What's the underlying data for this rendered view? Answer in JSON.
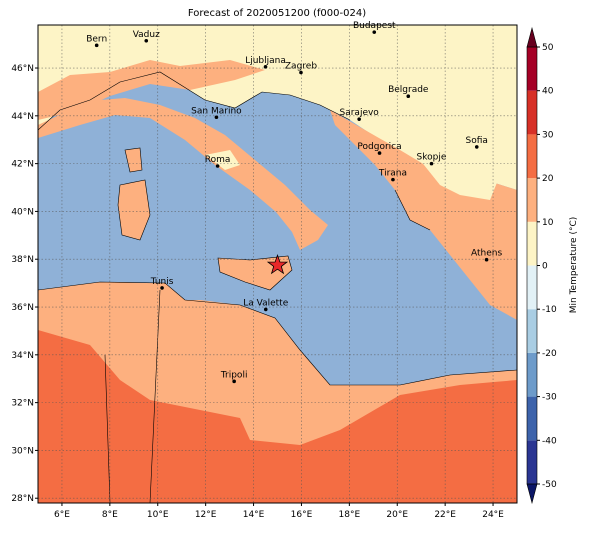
{
  "map": {
    "title": "Forecast of 2020051200 (f000-024)",
    "xlim": [
      5,
      25
    ],
    "ylim": [
      27.8,
      47.8
    ],
    "xticks": [
      {
        "value": 6,
        "label": "6°E"
      },
      {
        "value": 8,
        "label": "8°E"
      },
      {
        "value": 10,
        "label": "10°E"
      },
      {
        "value": 12,
        "label": "12°E"
      },
      {
        "value": 14,
        "label": "14°E"
      },
      {
        "value": 16,
        "label": "16°E"
      },
      {
        "value": 18,
        "label": "18°E"
      },
      {
        "value": 20,
        "label": "20°E"
      },
      {
        "value": 22,
        "label": "22°E"
      },
      {
        "value": 24,
        "label": "24°E"
      }
    ],
    "yticks": [
      {
        "value": 28,
        "label": "28°N"
      },
      {
        "value": 30,
        "label": "30°N"
      },
      {
        "value": 32,
        "label": "32°N"
      },
      {
        "value": 34,
        "label": "34°N"
      },
      {
        "value": 36,
        "label": "36°N"
      },
      {
        "value": 38,
        "label": "38°N"
      },
      {
        "value": 40,
        "label": "40°N"
      },
      {
        "value": 42,
        "label": "42°N"
      },
      {
        "value": 44,
        "label": "44°N"
      },
      {
        "value": 46,
        "label": "46°N"
      }
    ],
    "grid": true,
    "cities": [
      {
        "name": "Bern",
        "lon": 7.45,
        "lat": 46.95
      },
      {
        "name": "Vaduz",
        "lon": 9.52,
        "lat": 47.14
      },
      {
        "name": "Budapest",
        "lon": 19.04,
        "lat": 47.5
      },
      {
        "name": "Ljubljana",
        "lon": 14.5,
        "lat": 46.05
      },
      {
        "name": "Zagreb",
        "lon": 15.98,
        "lat": 45.81
      },
      {
        "name": "Belgrade",
        "lon": 20.46,
        "lat": 44.82
      },
      {
        "name": "Sarajevo",
        "lon": 18.41,
        "lat": 43.86
      },
      {
        "name": "San Marino",
        "lon": 12.45,
        "lat": 43.94
      },
      {
        "name": "Podgorica",
        "lon": 19.26,
        "lat": 42.44
      },
      {
        "name": "Skopje",
        "lon": 21.43,
        "lat": 42.0
      },
      {
        "name": "Sofia",
        "lon": 23.32,
        "lat": 42.7
      },
      {
        "name": "Roma",
        "lon": 12.5,
        "lat": 41.9
      },
      {
        "name": "Tirana",
        "lon": 19.82,
        "lat": 41.33
      },
      {
        "name": "Athens",
        "lon": 23.73,
        "lat": 37.98
      },
      {
        "name": "Tunis",
        "lon": 10.18,
        "lat": 36.8
      },
      {
        "name": "La Valette",
        "lon": 14.51,
        "lat": 35.9
      },
      {
        "name": "Tripoli",
        "lon": 13.19,
        "lat": 32.89
      }
    ],
    "marker": {
      "lon": 15.0,
      "lat": 37.75,
      "color": "#e8282a"
    },
    "colorbar": {
      "label": "Min Temperature (°C)",
      "ticks": [
        -50,
        -40,
        -30,
        -20,
        -10,
        0,
        10,
        20,
        30,
        40,
        50
      ],
      "colors": [
        "#2a3592",
        "#3d63ab",
        "#6d9bca",
        "#a9cde3",
        "#e2f1f6",
        "#fdf4c6",
        "#fdb07f",
        "#f46d43",
        "#d73027",
        "#a50026"
      ],
      "under": "#0b1667",
      "over": "#67001f"
    }
  }
}
